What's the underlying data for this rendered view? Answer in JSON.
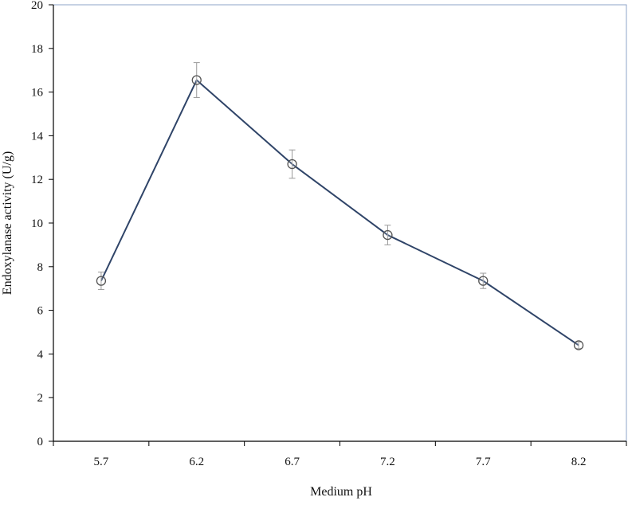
{
  "chart_data": {
    "type": "line",
    "title": "",
    "xlabel": "Medium pH",
    "ylabel": "Endoxylanase activity (U/g)",
    "categories": [
      "5.7",
      "6.2",
      "6.7",
      "7.2",
      "7.7",
      "8.2"
    ],
    "series": [
      {
        "values": [
          7.35,
          16.55,
          12.7,
          9.45,
          7.35,
          4.4
        ],
        "error": [
          0.4,
          0.8,
          0.65,
          0.45,
          0.35,
          0.15
        ]
      }
    ],
    "ylim": [
      0,
      20
    ],
    "yticks": [
      0,
      2,
      4,
      6,
      8,
      10,
      12,
      14,
      16,
      18,
      20
    ],
    "grid": false,
    "legend": "none",
    "colors": {
      "line": "#2f4468",
      "marker": "#555555",
      "error_bar": "#999999",
      "axis": "#000000",
      "frame": "#8fa4c8"
    }
  }
}
